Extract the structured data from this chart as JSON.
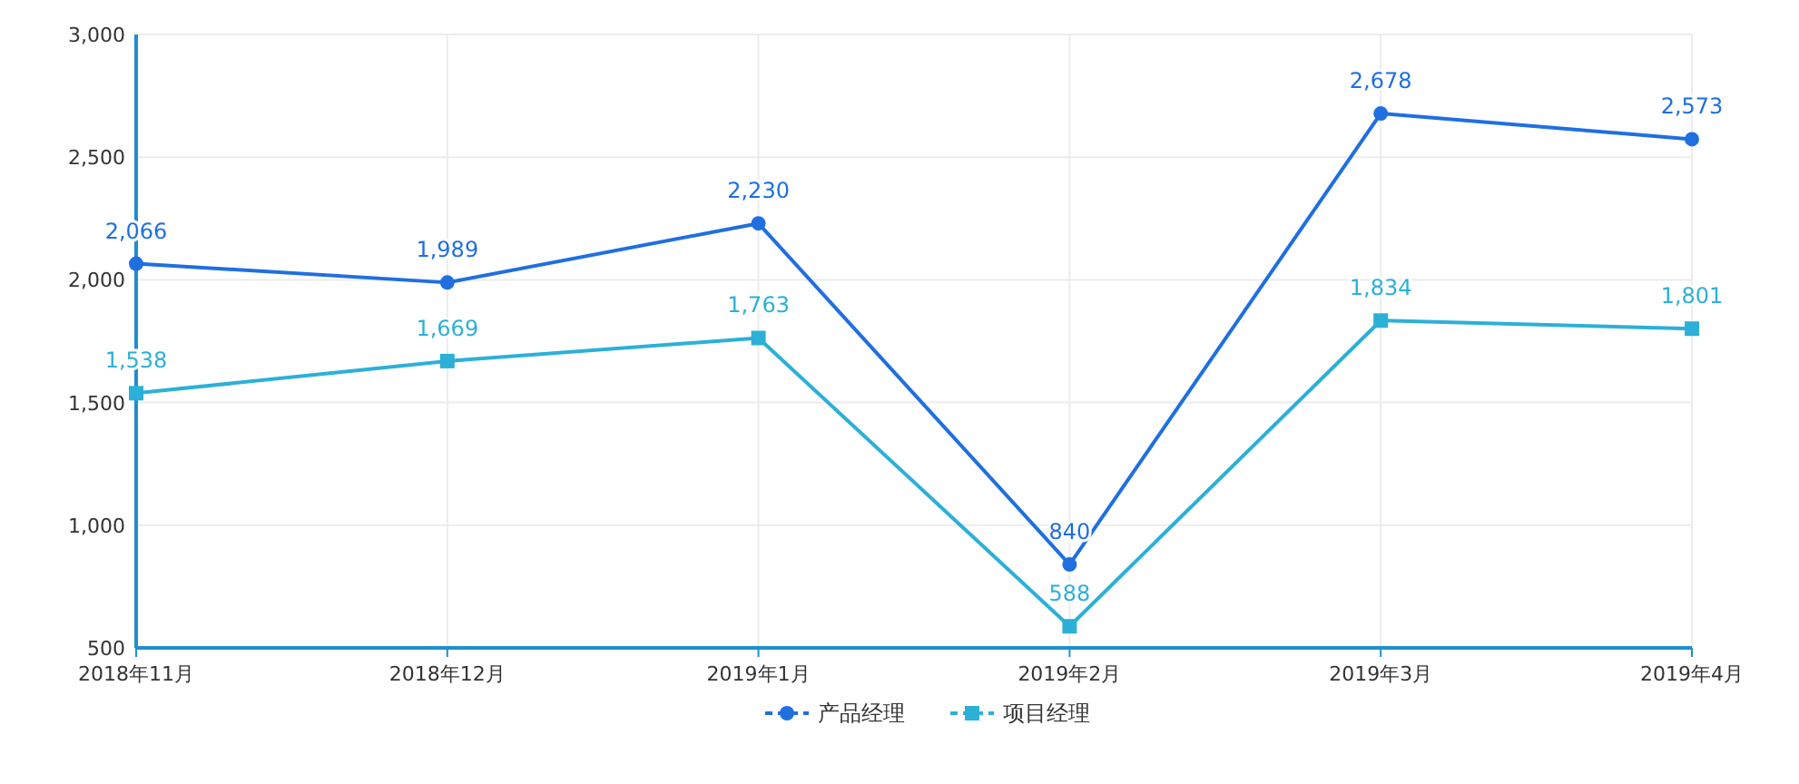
{
  "chart_data": {
    "type": "line",
    "categories": [
      "2018年11月",
      "2018年12月",
      "2019年1月",
      "2019年2月",
      "2019年3月",
      "2019年4月"
    ],
    "series": [
      {
        "name": "产品经理",
        "color": "#1f6fe0",
        "marker": "circle",
        "values": [
          2066,
          1989,
          2230,
          840,
          2678,
          2573
        ],
        "value_labels": [
          "2,066",
          "1,989",
          "2,230",
          "840",
          "2,678",
          "2,573"
        ]
      },
      {
        "name": "项目经理",
        "color": "#2cb0d8",
        "marker": "square",
        "values": [
          1538,
          1669,
          1763,
          588,
          1834,
          1801
        ],
        "value_labels": [
          "1,538",
          "1,669",
          "1,763",
          "588",
          "1,834",
          "1,801"
        ]
      }
    ],
    "ylim": [
      500,
      3000
    ],
    "yticks": [
      {
        "value": 500,
        "label": "500"
      },
      {
        "value": 1000,
        "label": "1,000"
      },
      {
        "value": 1500,
        "label": "1,500"
      },
      {
        "value": 2000,
        "label": "2,000"
      },
      {
        "value": 2500,
        "label": "2,500"
      },
      {
        "value": 3000,
        "label": "3,000"
      }
    ],
    "grid": true,
    "legend": "bottom",
    "line_style": "solid"
  }
}
